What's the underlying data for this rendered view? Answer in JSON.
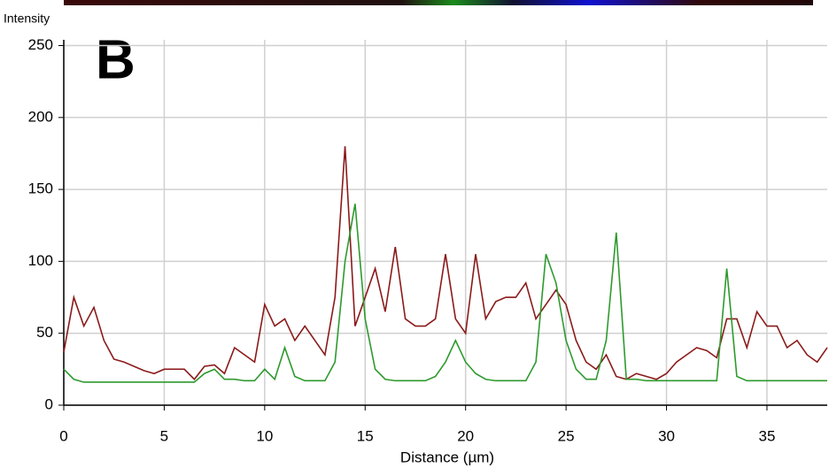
{
  "chart_data": {
    "type": "line",
    "panel_label": "B",
    "ylabel": "Intensity",
    "xlabel": "Distance (µm)",
    "x": [
      0,
      0.5,
      1,
      1.5,
      2,
      2.5,
      3,
      3.5,
      4,
      4.5,
      5,
      5.5,
      6,
      6.5,
      7,
      7.5,
      8,
      8.5,
      9,
      9.5,
      10,
      10.5,
      11,
      11.5,
      12,
      12.5,
      13,
      13.5,
      14,
      14.5,
      15,
      15.5,
      16,
      16.5,
      17,
      17.5,
      18,
      18.5,
      19,
      19.5,
      20,
      20.5,
      21,
      21.5,
      22,
      22.5,
      23,
      23.5,
      24,
      24.5,
      25,
      25.5,
      26,
      26.5,
      27,
      27.5,
      28,
      28.5,
      29,
      29.5,
      30,
      30.5,
      31,
      31.5,
      32,
      32.5,
      33,
      33.5,
      34,
      34.5,
      35,
      35.5,
      36,
      36.5,
      37,
      37.5,
      38
    ],
    "series": [
      {
        "color": "#8b1a1a",
        "values": [
          37,
          75,
          55,
          68,
          45,
          32,
          30,
          27,
          24,
          22,
          25,
          25,
          25,
          18,
          27,
          28,
          22,
          40,
          35,
          30,
          70,
          55,
          60,
          45,
          55,
          45,
          35,
          75,
          180,
          55,
          75,
          95,
          65,
          110,
          60,
          55,
          55,
          60,
          105,
          60,
          50,
          105,
          60,
          72,
          75,
          75,
          85,
          60,
          70,
          80,
          70,
          45,
          30,
          25,
          35,
          20,
          18,
          22,
          20,
          18,
          22,
          30,
          35,
          40,
          38,
          33,
          60,
          60,
          40,
          65,
          55,
          55,
          40,
          45,
          35,
          30,
          40
        ]
      },
      {
        "color": "#2e9a2e",
        "values": [
          25,
          18,
          16,
          16,
          16,
          16,
          16,
          16,
          16,
          16,
          16,
          16,
          16,
          16,
          22,
          25,
          18,
          18,
          17,
          17,
          25,
          18,
          40,
          20,
          17,
          17,
          17,
          30,
          100,
          140,
          60,
          25,
          18,
          17,
          17,
          17,
          17,
          20,
          30,
          45,
          30,
          22,
          18,
          17,
          17,
          17,
          17,
          30,
          105,
          85,
          45,
          25,
          18,
          18,
          45,
          120,
          18,
          18,
          17,
          17,
          17,
          17,
          17,
          17,
          17,
          17,
          95,
          20,
          17,
          17,
          17,
          17,
          17,
          17,
          17,
          17,
          17
        ]
      }
    ],
    "xlim": [
      0,
      38
    ],
    "xticks": [
      0,
      5,
      10,
      15,
      20,
      25,
      30,
      35
    ],
    "ylim": [
      0,
      254
    ],
    "yticks": [
      0,
      50,
      100,
      150,
      200,
      250
    ],
    "grid": true
  }
}
